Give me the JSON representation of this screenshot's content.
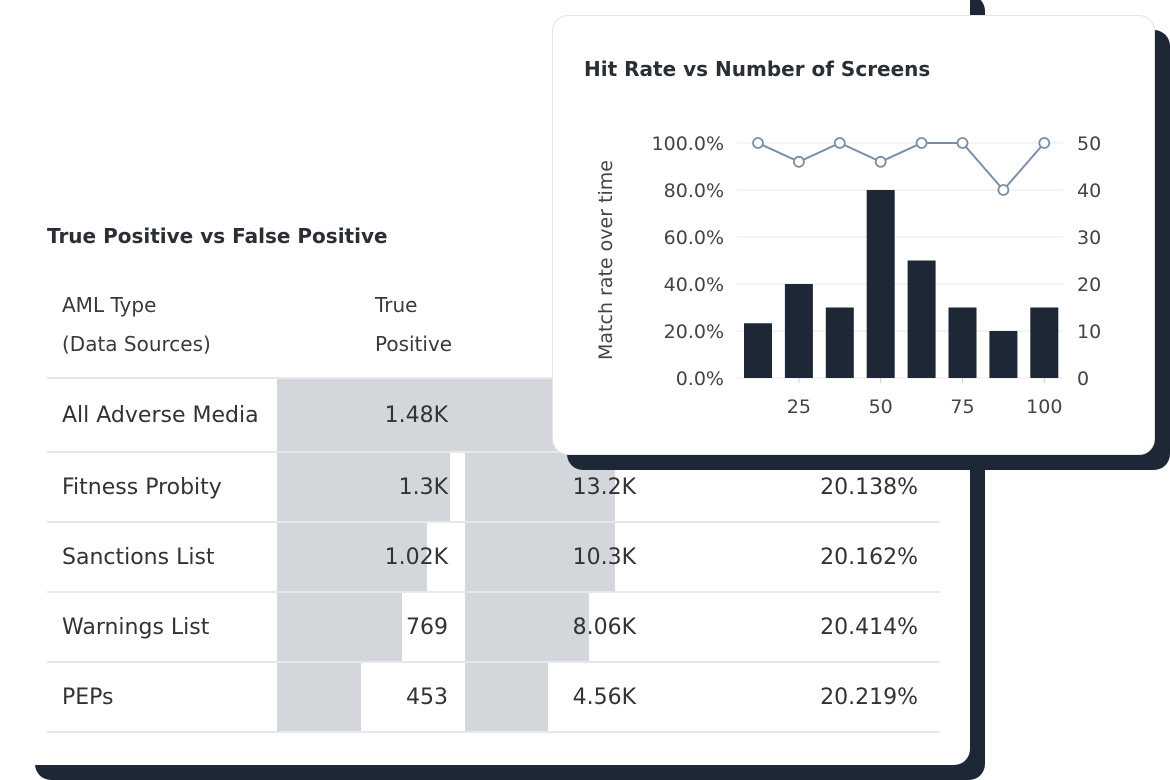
{
  "table_card": {
    "title": "True Positive vs False Positive",
    "headers": [
      "AML Type",
      "(Data Sources)",
      "True",
      "Positive"
    ],
    "rows": [
      {
        "type": "All Adverse Media",
        "tp": "1.48K",
        "tp_fill": 1.0,
        "fp": "",
        "fp_fill": 1.0,
        "rate": ""
      },
      {
        "type": "Fitness Probity",
        "tp": "1.3K",
        "tp_fill": 0.935,
        "fp": "13.2K",
        "fp_fill": 0.81,
        "rate": "20.138%"
      },
      {
        "type": "Sanctions List",
        "tp": "1.02K",
        "tp_fill": 0.81,
        "fp": "10.3K",
        "fp_fill": 0.81,
        "rate": "20.162%"
      },
      {
        "type": "Warnings List",
        "tp": "769",
        "tp_fill": 0.676,
        "fp": "8.06K",
        "fp_fill": 0.67,
        "rate": "20.414%"
      },
      {
        "type": "PEPs",
        "tp": "453",
        "tp_fill": 0.454,
        "fp": "4.56K",
        "fp_fill": 0.45,
        "rate": "20.219%"
      }
    ]
  },
  "chart_data": {
    "type": "bar",
    "title": "Hit Rate vs Number of Screens",
    "ylabel": "Match rate over time",
    "x": [
      12.5,
      25,
      37.5,
      50,
      62.5,
      75,
      87.5,
      100
    ],
    "xticks": [
      "25",
      "50",
      "75",
      "100"
    ],
    "xtick_values": [
      25,
      50,
      75,
      100
    ],
    "yticks_left": [
      "0.0%",
      "20.0%",
      "40.0%",
      "60.0%",
      "80.0%",
      "100.0%"
    ],
    "yticks_right": [
      "0",
      "10",
      "20",
      "30",
      "40",
      "50"
    ],
    "ylim_left": [
      0,
      100
    ],
    "ylim_right": [
      0,
      50
    ],
    "series": [
      {
        "name": "bars",
        "type": "bar",
        "axis": "left",
        "color": "#1d2735",
        "values": [
          23.3,
          40,
          30,
          80,
          50,
          30,
          20,
          30
        ]
      },
      {
        "name": "line",
        "type": "line",
        "axis": "right",
        "color": "#7a8fa6",
        "values": [
          50,
          46,
          50,
          46,
          50,
          50,
          40,
          50
        ]
      }
    ],
    "grid": true
  }
}
